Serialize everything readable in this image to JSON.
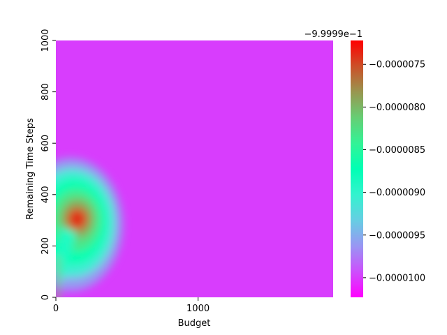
{
  "chart_data": {
    "type": "heatmap",
    "title": "",
    "xlabel": "Budget",
    "ylabel": "Remaining Time Steps",
    "xlim": [
      0,
      1950
    ],
    "ylim": [
      0,
      1000
    ],
    "x_ticks": [
      0,
      1000
    ],
    "x_tick_labels": [
      "0",
      "1000"
    ],
    "y_ticks": [
      0,
      200,
      400,
      600,
      800,
      1000
    ],
    "y_tick_labels": [
      "0",
      "200",
      "400",
      "600",
      "800",
      "1000"
    ],
    "colormap": "rainbow",
    "background_value": -1e-05,
    "hotspots": [
      {
        "budget": 150,
        "remaining_time_steps": 305,
        "value": -7.4e-06,
        "description": "peak"
      },
      {
        "budget": 0,
        "remaining_time_steps": 120,
        "value": -8e-06,
        "description": "left-edge strip"
      }
    ],
    "colorbar": {
      "offset_label": "−9.9999e−1",
      "range": [
        -1.023e-05,
        -7.22e-06
      ],
      "ticks": [
        -7.5e-06,
        -8e-06,
        -8.5e-06,
        -9e-06,
        -9.5e-06,
        -1e-05
      ],
      "tick_labels": [
        "−0.0000075",
        "−0.0000080",
        "−0.0000085",
        "−0.0000090",
        "−0.0000095",
        "−0.0000100"
      ]
    },
    "grid": false,
    "legend": "none"
  }
}
